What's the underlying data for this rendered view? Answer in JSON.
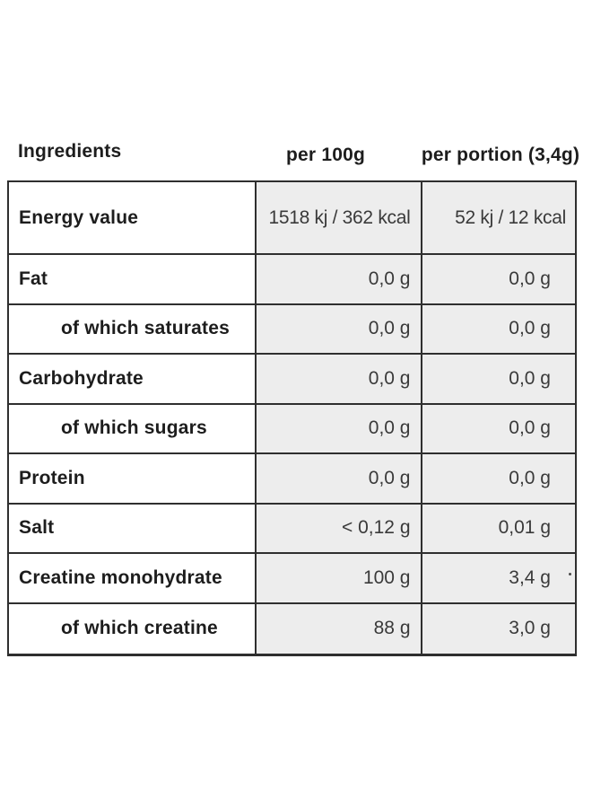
{
  "colors": {
    "background": "#ffffff",
    "border": "#2f2f2f",
    "shaded_cell": "#ededed",
    "label_text": "#1d1d1d",
    "value_text": "#3a3a3a"
  },
  "header": {
    "ingredients": "Ingredients",
    "per_100g": "per 100g",
    "per_portion": "per portion (3,4g)"
  },
  "table": {
    "rows": [
      {
        "label": "Energy value",
        "indent": false,
        "per_100g": "1518 kj / 362 kcal",
        "per_portion": "52 kj / 12 kcal"
      },
      {
        "label": "Fat",
        "indent": false,
        "per_100g": "0,0 g",
        "per_portion": "0,0 g"
      },
      {
        "label": "of which saturates",
        "indent": true,
        "per_100g": "0,0 g",
        "per_portion": "0,0 g"
      },
      {
        "label": "Carbohydrate",
        "indent": false,
        "per_100g": "0,0 g",
        "per_portion": "0,0 g"
      },
      {
        "label": "of which sugars",
        "indent": true,
        "per_100g": "0,0 g",
        "per_portion": "0,0 g"
      },
      {
        "label": "Protein",
        "indent": false,
        "per_100g": "0,0 g",
        "per_portion": "0,0 g"
      },
      {
        "label": "Salt",
        "indent": false,
        "per_100g": "< 0,12 g",
        "per_portion": "0,01 g"
      },
      {
        "label": "Creatine monohydrate",
        "indent": false,
        "per_100g": "100 g",
        "per_portion": "3,4 g"
      },
      {
        "label": "of which creatine",
        "indent": true,
        "per_100g": "88 g",
        "per_portion": "3,0 g"
      }
    ]
  }
}
